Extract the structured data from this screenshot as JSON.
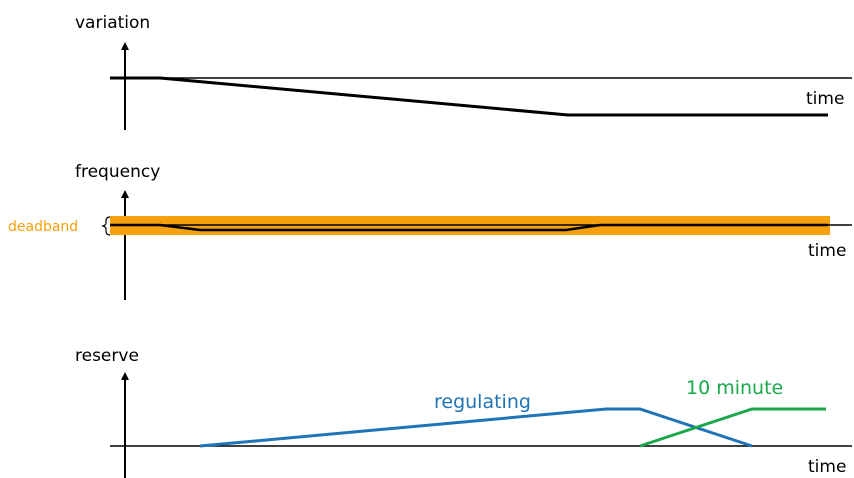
{
  "panels": {
    "variation": {
      "ylabel": "variation",
      "xlabel": "time"
    },
    "frequency": {
      "ylabel": "frequency",
      "xlabel": "time",
      "band_label": "deadband"
    },
    "reserve": {
      "ylabel": "reserve",
      "xlabel": "time",
      "series": [
        {
          "name": "regulating"
        },
        {
          "name": "10 minute"
        }
      ]
    }
  },
  "colors": {
    "axis": "#000000",
    "deadband": "#f5a00c",
    "regulating": "#1f73b7",
    "ten_minute": "#1aa84b"
  }
}
